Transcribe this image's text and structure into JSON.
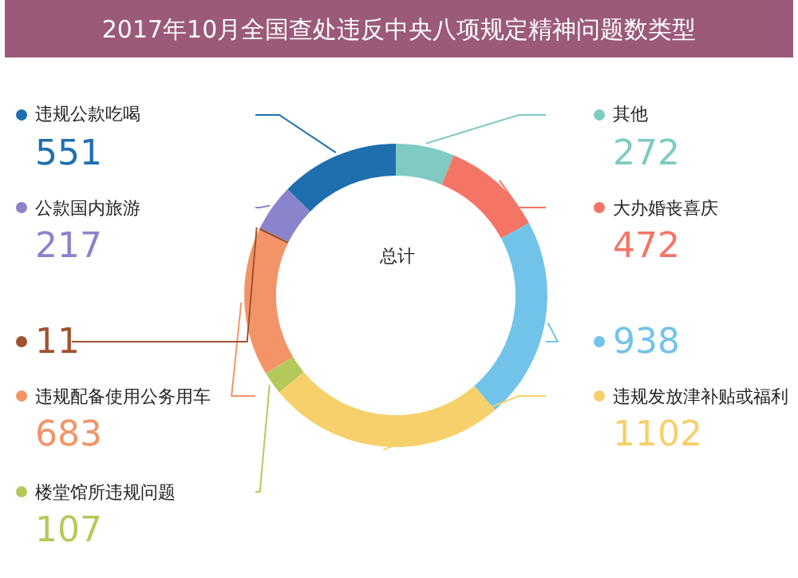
{
  "chart_data": {
    "type": "donut",
    "title": "2017年10月全国查处违反中央八项规定精神问题数类型",
    "categories": [
      "其他",
      "大办婚丧喜庆",
      null,
      "违规发放津补贴或福利",
      "楼堂馆所违规问题",
      "违规配备使用公务用车",
      null,
      "公款国内旅游",
      "违规公款吃喝"
    ],
    "values": [
      272,
      472,
      938,
      1102,
      107,
      683,
      11,
      217,
      551
    ],
    "colors": [
      "#7fcbc2",
      "#f47566",
      "#72c3ea",
      "#f6d06a",
      "#b5c95a",
      "#f39468",
      "#a0522d",
      "#8a84cc",
      "#1f6fae"
    ],
    "data_labels": true,
    "annotations": [
      "总计"
    ],
    "legend": "left"
  }
}
